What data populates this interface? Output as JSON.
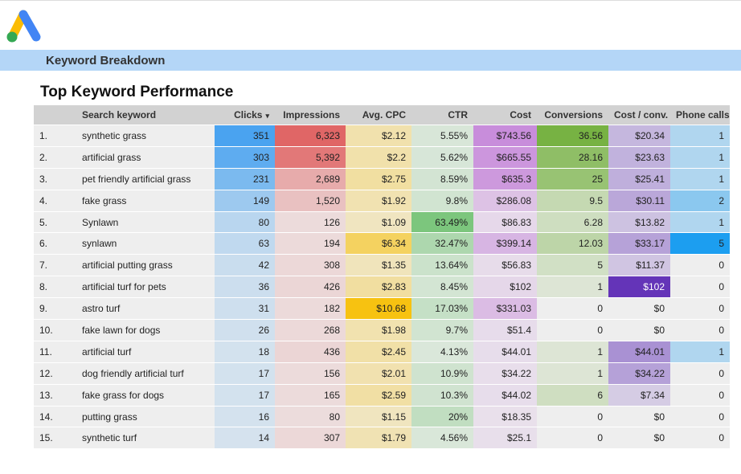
{
  "header": {
    "section": "Keyword Breakdown",
    "title": "Top Keyword Performance"
  },
  "table": {
    "sort_indicator": "▾",
    "sorted_column": 2,
    "base_color": "#eeeeee",
    "columns": [
      {
        "label": "",
        "align": "left",
        "heat_color": null
      },
      {
        "label": "Search keyword",
        "align": "left",
        "heat_color": null
      },
      {
        "label": "Clicks",
        "align": "right",
        "heat_color": "#4aa3f0"
      },
      {
        "label": "Impressions",
        "align": "right",
        "heat_color": "#e06666"
      },
      {
        "label": "Avg. CPC",
        "align": "right",
        "heat_color": "#f7c211"
      },
      {
        "label": "CTR",
        "align": "right",
        "heat_color": "#7cc67d"
      },
      {
        "label": "Cost",
        "align": "right",
        "heat_color": "#c88ddb"
      },
      {
        "label": "Conversions",
        "align": "right",
        "heat_color": "#77b243"
      },
      {
        "label": "Cost / conv.",
        "align": "right",
        "heat_color": "#6434b8"
      },
      {
        "label": "Phone calls",
        "align": "right",
        "heat_color": "#1c9ef0"
      }
    ],
    "rows": [
      [
        "1.",
        "synthetic grass",
        "351",
        "6,323",
        "$2.12",
        "5.55%",
        "$743.56",
        "36.56",
        "$20.34",
        "1"
      ],
      [
        "2.",
        "artificial grass",
        "303",
        "5,392",
        "$2.2",
        "5.62%",
        "$665.55",
        "28.16",
        "$23.63",
        "1"
      ],
      [
        "3.",
        "pet friendly artificial grass",
        "231",
        "2,689",
        "$2.75",
        "8.59%",
        "$635.3",
        "25",
        "$25.41",
        "1"
      ],
      [
        "4.",
        "fake grass",
        "149",
        "1,520",
        "$1.92",
        "9.8%",
        "$286.08",
        "9.5",
        "$30.11",
        "2"
      ],
      [
        "5.",
        "Synlawn",
        "80",
        "126",
        "$1.09",
        "63.49%",
        "$86.83",
        "6.28",
        "$13.82",
        "1"
      ],
      [
        "6.",
        "synlawn",
        "63",
        "194",
        "$6.34",
        "32.47%",
        "$399.14",
        "12.03",
        "$33.17",
        "5"
      ],
      [
        "7.",
        "artificial putting grass",
        "42",
        "308",
        "$1.35",
        "13.64%",
        "$56.83",
        "5",
        "$11.37",
        "0"
      ],
      [
        "8.",
        "artificial turf for pets",
        "36",
        "426",
        "$2.83",
        "8.45%",
        "$102",
        "1",
        "$102",
        "0"
      ],
      [
        "9.",
        "astro turf",
        "31",
        "182",
        "$10.68",
        "17.03%",
        "$331.03",
        "0",
        "$0",
        "0"
      ],
      [
        "10.",
        "fake lawn for dogs",
        "26",
        "268",
        "$1.98",
        "9.7%",
        "$51.4",
        "0",
        "$0",
        "0"
      ],
      [
        "11.",
        "artificial turf",
        "18",
        "436",
        "$2.45",
        "4.13%",
        "$44.01",
        "1",
        "$44.01",
        "1"
      ],
      [
        "12.",
        "dog friendly artificial turf",
        "17",
        "156",
        "$2.01",
        "10.9%",
        "$34.22",
        "1",
        "$34.22",
        "0"
      ],
      [
        "13.",
        "fake grass for dogs",
        "17",
        "165",
        "$2.59",
        "10.3%",
        "$44.02",
        "6",
        "$7.34",
        "0"
      ],
      [
        "14.",
        "putting grass",
        "16",
        "80",
        "$1.15",
        "20%",
        "$18.35",
        "0",
        "$0",
        "0"
      ],
      [
        "15.",
        "synthetic turf",
        "14",
        "307",
        "$1.79",
        "4.56%",
        "$25.1",
        "0",
        "$0",
        "0"
      ]
    ]
  }
}
